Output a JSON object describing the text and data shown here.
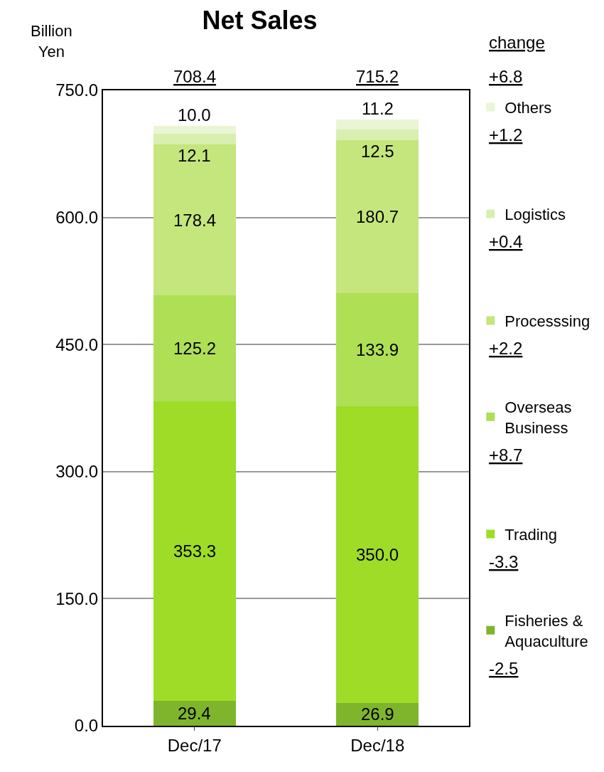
{
  "chart_data": {
    "type": "bar",
    "title": "Net Sales",
    "ylabel": "Billion Yen",
    "categories": [
      "Dec/17",
      "Dec/18"
    ],
    "series": [
      {
        "name": "Fisheries & Aquaculture",
        "color": "#7fb52c",
        "values": [
          29.4,
          26.9
        ],
        "value_labels": [
          "29.4",
          "26.9"
        ]
      },
      {
        "name": "Trading",
        "color": "#9edc28",
        "values": [
          353.3,
          350.0
        ],
        "value_labels": [
          "353.3",
          "350.0"
        ]
      },
      {
        "name": "Overseas Business",
        "color": "#afdf55",
        "values": [
          125.2,
          133.9
        ],
        "value_labels": [
          "125.2",
          "133.9"
        ]
      },
      {
        "name": "Processsing",
        "color": "#c4e67c",
        "values": [
          178.4,
          180.7
        ],
        "value_labels": [
          "178.4",
          "180.7"
        ]
      },
      {
        "name": "Logistics",
        "color": "#d9efaf",
        "values": [
          12.1,
          12.5
        ],
        "value_labels": [
          "12.1",
          "12.5"
        ]
      },
      {
        "name": "Others",
        "color": "#e9f5d4",
        "values": [
          10.0,
          11.2
        ],
        "value_labels": [
          "10.0",
          "11.2"
        ]
      }
    ],
    "stacked": true,
    "totals": [
      "708.4",
      "715.2"
    ],
    "ylim": [
      0,
      750
    ],
    "yticks": [
      {
        "value": 0,
        "label": "0.0"
      },
      {
        "value": 150,
        "label": "150.0"
      },
      {
        "value": 300,
        "label": "300.0"
      },
      {
        "value": 450,
        "label": "450.0"
      },
      {
        "value": 600,
        "label": "600.0"
      },
      {
        "value": 750,
        "label": "750.0"
      }
    ],
    "grid": "y",
    "legend": "right",
    "annotations": [
      "change",
      "+6.8",
      "-2.5",
      "-3.3",
      "+8.7",
      "+2.2",
      "+0.4",
      "+1.2"
    ]
  }
}
